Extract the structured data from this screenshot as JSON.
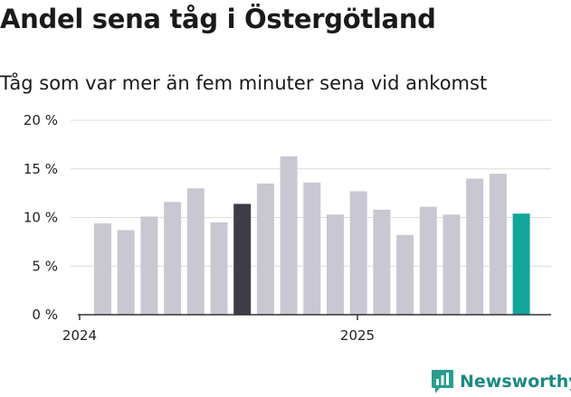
{
  "title": "Andel sena tåg i Östergötland",
  "subtitle": "Tåg som var mer än fem minuter sena vid ankomst",
  "brand": {
    "name": "Newsworthy",
    "icon": "newsworthy-logo-icon",
    "color": "#2a9d8f"
  },
  "colors": {
    "bar": "#c9c7d1",
    "highlight_dark": "#3d3c47",
    "highlight_accent": "#14a59a",
    "grid": "#dcdcdc",
    "axis": "#333333"
  },
  "chart_data": {
    "type": "bar",
    "categories": [
      "2024-01",
      "2024-02",
      "2024-03",
      "2024-04",
      "2024-05",
      "2024-06",
      "2024-07",
      "2024-08",
      "2024-09",
      "2024-10",
      "2024-11",
      "2024-12",
      "2025-01",
      "2025-02",
      "2025-03",
      "2025-04",
      "2025-05",
      "2025-06",
      "2025-07"
    ],
    "values": [
      9.4,
      8.7,
      10.1,
      11.6,
      13.0,
      9.5,
      11.4,
      13.5,
      16.3,
      13.6,
      10.3,
      12.7,
      10.8,
      8.2,
      11.1,
      10.3,
      14.0,
      14.5,
      10.4
    ],
    "highlight": {
      "6": "highlight_dark",
      "18": "highlight_accent"
    },
    "y_ticks": [
      0,
      5,
      10,
      15,
      20
    ],
    "y_tick_labels": [
      "0 %",
      "5 %",
      "10 %",
      "15 %",
      "20 %"
    ],
    "ylim": [
      0,
      20
    ],
    "x_tick_labels": [
      {
        "index": 0,
        "label": "2024"
      },
      {
        "index": 12,
        "label": "2025"
      }
    ],
    "xlabel": "",
    "ylabel": "",
    "grid": true,
    "legend": "none"
  }
}
